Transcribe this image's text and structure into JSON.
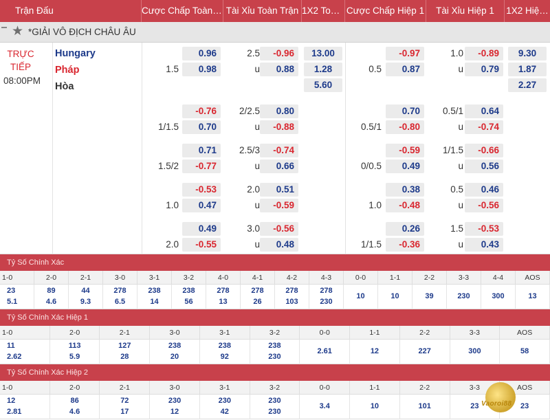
{
  "header": {
    "columns": [
      "Trận Đấu",
      "Cược Chấp Toàn …",
      "Tài Xỉu Toàn Trận",
      "1X2 Toà…",
      "Cược Chấp Hiệp 1",
      "Tài Xỉu Hiệp 1",
      "1X2 Hiệ…"
    ]
  },
  "league": {
    "name": "*GIẢI VÔ ĐỊCH CHÂU ÂU"
  },
  "match": {
    "status": "TRỰC TIẾP",
    "time": "08:00PM",
    "home": "Hungary",
    "away": "Pháp",
    "draw": "Hòa",
    "rows": [
      {
        "ah_line": "1.5",
        "ah_top": "0.96",
        "ah_bot": "0.98",
        "ou_line": "2.5",
        "ou_u": "u",
        "ou_top": "-0.96",
        "ou_bot": "0.88",
        "x12": [
          "13.00",
          "1.28",
          "5.60"
        ],
        "h1_ah_line": "0.5",
        "h1_ah_top": "-0.97",
        "h1_ah_bot": "0.87",
        "h1_ou_line": "1.0",
        "h1_ou_u": "u",
        "h1_ou_top": "-0.89",
        "h1_ou_bot": "0.79",
        "h1_x12": [
          "9.30",
          "1.87",
          "2.27"
        ]
      },
      {
        "ah_line": "1/1.5",
        "ah_top": "-0.76",
        "ah_bot": "0.70",
        "ou_line": "2/2.5",
        "ou_u": "u",
        "ou_top": "0.80",
        "ou_bot": "-0.88",
        "h1_ah_line": "0.5/1",
        "h1_ah_top": "0.70",
        "h1_ah_bot": "-0.80",
        "h1_ou_line": "0.5/1",
        "h1_ou_u": "u",
        "h1_ou_top": "0.64",
        "h1_ou_bot": "-0.74"
      },
      {
        "ah_line": "1.5/2",
        "ah_top": "0.71",
        "ah_bot": "-0.77",
        "ou_line": "2.5/3",
        "ou_u": "u",
        "ou_top": "-0.74",
        "ou_bot": "0.66",
        "h1_ah_line": "0/0.5",
        "h1_ah_top": "-0.59",
        "h1_ah_bot": "0.49",
        "h1_ou_line": "1/1.5",
        "h1_ou_u": "u",
        "h1_ou_top": "-0.66",
        "h1_ou_bot": "0.56"
      },
      {
        "ah_line": "1.0",
        "ah_top": "-0.53",
        "ah_bot": "0.47",
        "ou_line": "2.0",
        "ou_u": "u",
        "ou_top": "0.51",
        "ou_bot": "-0.59",
        "h1_ah_line": "1.0",
        "h1_ah_top": "0.38",
        "h1_ah_bot": "-0.48",
        "h1_ou_line": "0.5",
        "h1_ou_u": "u",
        "h1_ou_top": "0.46",
        "h1_ou_bot": "-0.56"
      },
      {
        "ah_line": "2.0",
        "ah_top": "0.49",
        "ah_bot": "-0.55",
        "ou_line": "3.0",
        "ou_u": "u",
        "ou_top": "-0.56",
        "ou_bot": "0.48",
        "h1_ah_line": "1/1.5",
        "h1_ah_top": "0.26",
        "h1_ah_bot": "-0.36",
        "h1_ou_line": "1.5",
        "h1_ou_u": "u",
        "h1_ou_top": "-0.53",
        "h1_ou_bot": "0.43"
      }
    ]
  },
  "correct_score": {
    "title": "Tỷ Số Chính Xác",
    "scores": [
      "1-0",
      "2-0",
      "2-1",
      "3-0",
      "3-1",
      "3-2",
      "4-0",
      "4-1",
      "4-2",
      "4-3",
      "0-0",
      "1-1",
      "2-2",
      "3-3",
      "4-4",
      "AOS"
    ],
    "values": [
      [
        "23",
        "5.1"
      ],
      [
        "89",
        "4.6"
      ],
      [
        "44",
        "9.3"
      ],
      [
        "278",
        "6.5"
      ],
      [
        "238",
        "14"
      ],
      [
        "238",
        "56"
      ],
      [
        "278",
        "13"
      ],
      [
        "278",
        "26"
      ],
      [
        "278",
        "103"
      ],
      [
        "278",
        "230"
      ],
      [
        "10"
      ],
      [
        "10"
      ],
      [
        "39"
      ],
      [
        "230"
      ],
      [
        "300"
      ],
      [
        "13"
      ]
    ]
  },
  "correct_score_h1": {
    "title": "Tỷ Số Chính Xác Hiệp 1",
    "scores": [
      "1-0",
      "2-0",
      "2-1",
      "3-0",
      "3-1",
      "3-2",
      "0-0",
      "1-1",
      "2-2",
      "3-3",
      "AOS"
    ],
    "values": [
      [
        "11",
        "2.62"
      ],
      [
        "113",
        "5.9"
      ],
      [
        "127",
        "28"
      ],
      [
        "238",
        "20"
      ],
      [
        "238",
        "92"
      ],
      [
        "238",
        "230"
      ],
      [
        "2.61"
      ],
      [
        "12"
      ],
      [
        "227"
      ],
      [
        "300"
      ],
      [
        "58"
      ]
    ]
  },
  "correct_score_h2": {
    "title": "Tỷ Số Chính Xác Hiệp 2",
    "scores": [
      "1-0",
      "2-0",
      "2-1",
      "3-0",
      "3-1",
      "3-2",
      "0-0",
      "1-1",
      "2-2",
      "3-3",
      "AOS"
    ],
    "values": [
      [
        "12",
        "2.81"
      ],
      [
        "86",
        "4.6"
      ],
      [
        "72",
        "17"
      ],
      [
        "230",
        "12"
      ],
      [
        "230",
        "42"
      ],
      [
        "230",
        "230"
      ],
      [
        "3.4"
      ],
      [
        "10"
      ],
      [
        "101"
      ],
      [
        "23"
      ],
      [
        "23"
      ]
    ]
  },
  "watermark": {
    "text": "Vaoroi88"
  },
  "colors": {
    "header": "#c8414b",
    "blue": "#1d3a8a",
    "red": "#d9262f"
  }
}
